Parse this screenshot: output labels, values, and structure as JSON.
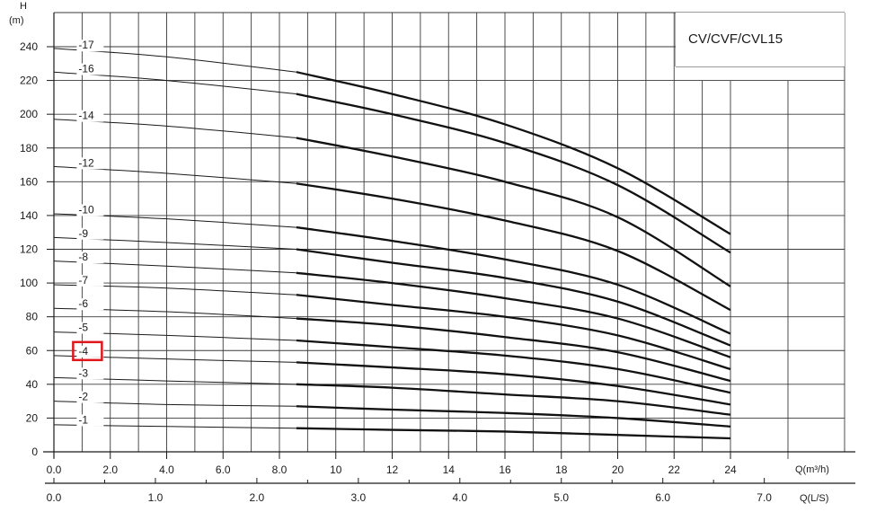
{
  "chart_data": {
    "type": "line",
    "title": "CV/CVF/CVL15",
    "ylabel": "H",
    "yunit": "(m)",
    "xlabel": "Q(m³/h)",
    "x2label": "Q(L/S)",
    "xlim": [
      0,
      28
    ],
    "ylim": [
      0,
      250
    ],
    "x_ticks": [
      0,
      2,
      4,
      6,
      8,
      10,
      12,
      14,
      16,
      18,
      20,
      22,
      24
    ],
    "x_tick_labels": [
      "0.0",
      "2.0",
      "4.0",
      "6.0",
      "8.0",
      "10",
      "12",
      "14",
      "16",
      "18",
      "20",
      "22",
      "24"
    ],
    "x2_ticks": [
      0,
      1,
      2,
      3,
      4,
      5,
      6,
      7
    ],
    "x2_tick_labels": [
      "0.0",
      "1.0",
      "2.0",
      "3.0",
      "4.0",
      "5.0",
      "6.0",
      "7.0"
    ],
    "y_ticks": [
      0,
      20,
      40,
      60,
      80,
      100,
      120,
      140,
      160,
      180,
      200,
      220,
      240
    ],
    "y_tick_labels": [
      "0",
      "20",
      "40",
      "60",
      "80",
      "100",
      "120",
      "140",
      "160",
      "180",
      "200",
      "220",
      "240"
    ],
    "grid": true,
    "operating_range": [
      8.6,
      24
    ],
    "highlight_label": "-4",
    "highlight_color": "#e0161d",
    "series": [
      {
        "name": "-1",
        "x": [
          0,
          4,
          8.6,
          12,
          16,
          20,
          24
        ],
        "y": [
          16,
          15,
          14,
          13,
          12,
          10,
          8
        ]
      },
      {
        "name": "-2",
        "x": [
          0,
          4,
          8.6,
          12,
          16,
          20,
          24
        ],
        "y": [
          30,
          28,
          27,
          25,
          23,
          20,
          15
        ]
      },
      {
        "name": "-3",
        "x": [
          0,
          4,
          8.6,
          12,
          16,
          20,
          24
        ],
        "y": [
          44,
          42,
          40,
          38,
          34,
          30,
          22
        ]
      },
      {
        "name": "-4",
        "x": [
          0,
          4,
          8.6,
          12,
          16,
          20,
          24
        ],
        "y": [
          57,
          55,
          53,
          50,
          46,
          39,
          28
        ]
      },
      {
        "name": "-5",
        "x": [
          0,
          4,
          8.6,
          12,
          16,
          20,
          24
        ],
        "y": [
          71,
          69,
          66,
          62,
          57,
          49,
          35
        ]
      },
      {
        "name": "-6",
        "x": [
          0,
          4,
          8.6,
          12,
          16,
          20,
          24
        ],
        "y": [
          85,
          83,
          79,
          75,
          68,
          59,
          42
        ]
      },
      {
        "name": "-7",
        "x": [
          0,
          4,
          8.6,
          12,
          16,
          20,
          24
        ],
        "y": [
          99,
          97,
          93,
          87,
          80,
          69,
          49
        ]
      },
      {
        "name": "-8",
        "x": [
          0,
          4,
          8.6,
          12,
          16,
          20,
          24
        ],
        "y": [
          113,
          110,
          106,
          100,
          91,
          79,
          56
        ]
      },
      {
        "name": "-9",
        "x": [
          0,
          4,
          8.6,
          12,
          16,
          20,
          24
        ],
        "y": [
          127,
          124,
          120,
          112,
          103,
          89,
          63
        ]
      },
      {
        "name": "-10",
        "x": [
          0,
          4,
          8.6,
          12,
          16,
          20,
          24
        ],
        "y": [
          141,
          138,
          133,
          125,
          114,
          99,
          70
        ]
      },
      {
        "name": "-12",
        "x": [
          0,
          4,
          8.6,
          12,
          16,
          20,
          24
        ],
        "y": [
          169,
          165,
          159,
          150,
          137,
          119,
          84
        ]
      },
      {
        "name": "-14",
        "x": [
          0,
          4,
          8.6,
          12,
          16,
          20,
          24
        ],
        "y": [
          197,
          193,
          186,
          175,
          160,
          139,
          98
        ]
      },
      {
        "name": "-16",
        "x": [
          0,
          4,
          8.6,
          12,
          16,
          20,
          24
        ],
        "y": [
          225,
          220,
          212,
          200,
          183,
          158,
          118
        ]
      },
      {
        "name": "-17",
        "x": [
          0,
          4,
          8.6,
          12,
          16,
          20,
          24
        ],
        "y": [
          239,
          234,
          225,
          212,
          194,
          168,
          129
        ]
      }
    ]
  }
}
